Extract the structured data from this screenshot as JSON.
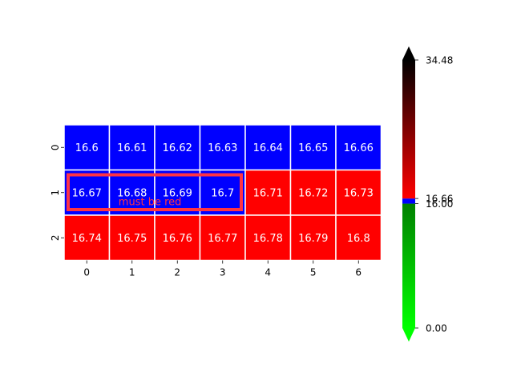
{
  "chart_data": {
    "type": "heatmap",
    "title": "",
    "xlabel": "",
    "ylabel": "",
    "x_categories": [
      "0",
      "1",
      "2",
      "3",
      "4",
      "5",
      "6"
    ],
    "y_categories": [
      "0",
      "1",
      "2"
    ],
    "values": [
      [
        16.6,
        16.61,
        16.62,
        16.63,
        16.64,
        16.65,
        16.66
      ],
      [
        16.67,
        16.68,
        16.69,
        16.7,
        16.71,
        16.72,
        16.73
      ],
      [
        16.74,
        16.75,
        16.76,
        16.77,
        16.78,
        16.79,
        16.8
      ]
    ],
    "value_labels": [
      [
        "16.6",
        "16.61",
        "16.62",
        "16.63",
        "16.64",
        "16.65",
        "16.66"
      ],
      [
        "16.67",
        "16.68",
        "16.69",
        "16.7",
        "16.71",
        "16.72",
        "16.73"
      ],
      [
        "16.74",
        "16.75",
        "16.76",
        "16.77",
        "16.78",
        "16.79",
        "16.8"
      ]
    ],
    "cell_colors": [
      [
        "#0000ff",
        "#0000ff",
        "#0000ff",
        "#0000ff",
        "#0000ff",
        "#0000ff",
        "#0000ff"
      ],
      [
        "#0000ff",
        "#0000ff",
        "#0000ff",
        "#0000ff",
        "#ff0000",
        "#ff0000",
        "#ff0000"
      ],
      [
        "#ff0000",
        "#ff0000",
        "#ff0000",
        "#ff0000",
        "#ff0000",
        "#ff0000",
        "#ff0000"
      ]
    ],
    "cell_text_color": "#ffffff",
    "grid_line_color": "#ffffff",
    "annotation": {
      "text": "must be red",
      "color": "#ff3344",
      "row": 1,
      "col_start": 0,
      "col_end": 3
    },
    "colorbar": {
      "min": 0.0,
      "max": 34.48,
      "ticks": [
        {
          "value": 34.48,
          "label": "34.48"
        },
        {
          "value": 16.66,
          "label": "16.66"
        },
        {
          "value": 16.0,
          "label": "16.00"
        },
        {
          "value": 0.0,
          "label": "0.00"
        }
      ],
      "extend": "both",
      "segments": [
        {
          "from": 0.0,
          "to": 16.0,
          "colors": [
            "#00ff00",
            "#008000"
          ]
        },
        {
          "from": 16.0,
          "to": 16.66,
          "colors": [
            "#0000ff",
            "#0000ff"
          ]
        },
        {
          "from": 16.66,
          "to": 34.48,
          "colors": [
            "#ff0000",
            "#000000"
          ]
        }
      ],
      "under_color": "#00ff00",
      "over_color": "#000000"
    }
  }
}
